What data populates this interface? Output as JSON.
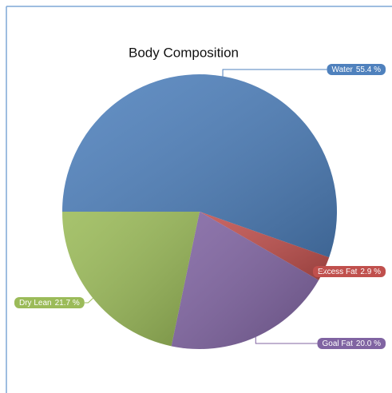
{
  "chart_data": {
    "type": "pie",
    "title": "Body Composition",
    "categories": [
      "Water",
      "Excess Fat",
      "Goal Fat",
      "Dry Lean"
    ],
    "values": [
      55.4,
      2.9,
      20.0,
      21.7
    ],
    "value_labels": [
      "55.4 %",
      "2.9 %",
      "20.0 %",
      "21.7 %"
    ],
    "colors": [
      "#4f81bd",
      "#c0504d",
      "#8064a2",
      "#9bbb59"
    ]
  }
}
